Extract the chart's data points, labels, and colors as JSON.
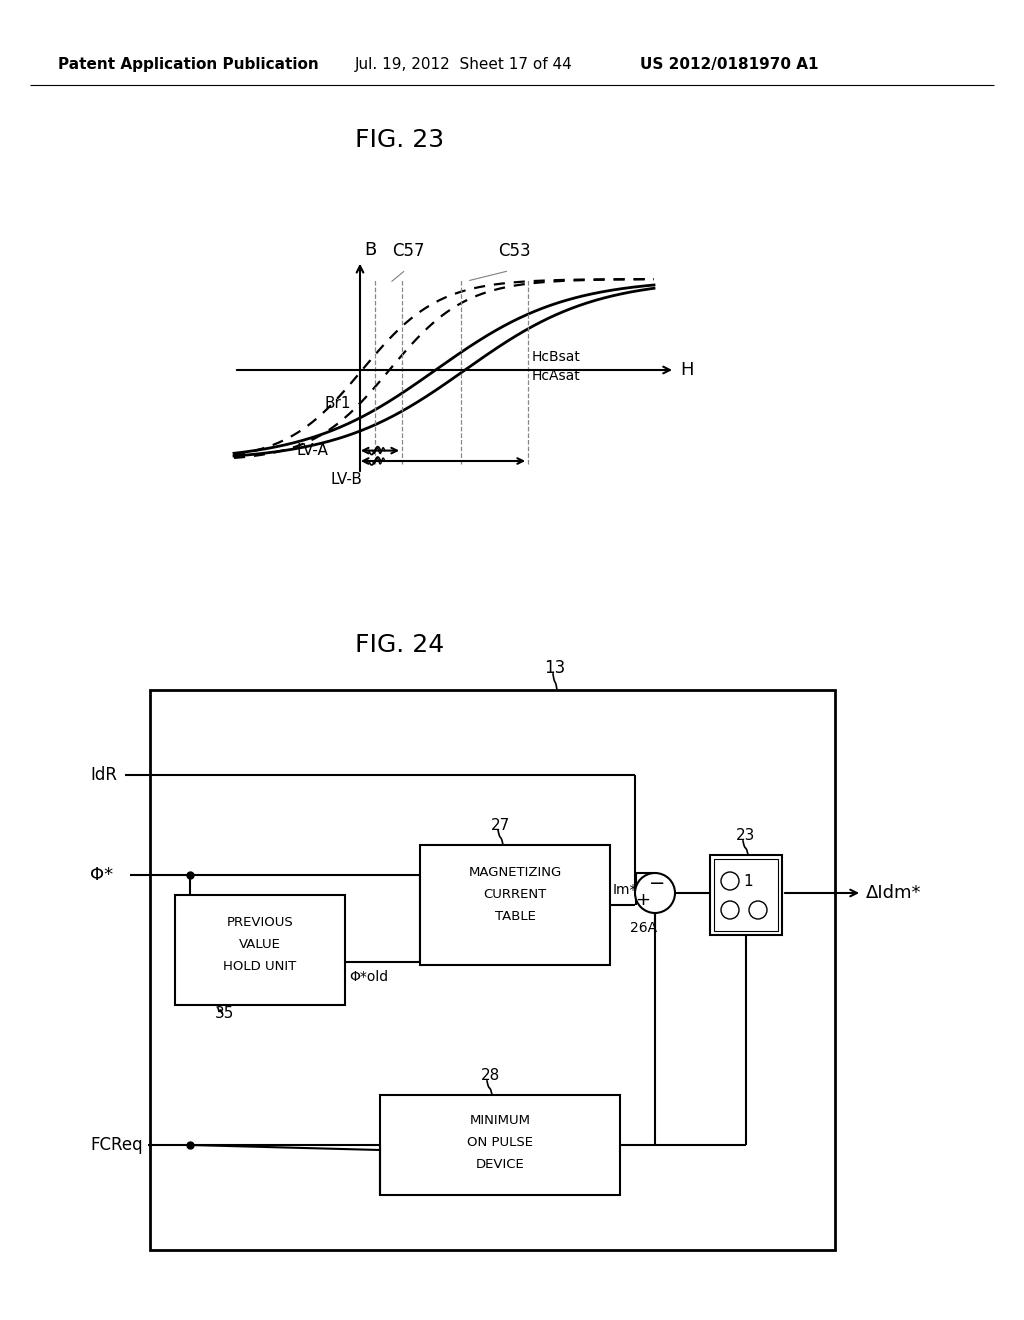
{
  "header_left": "Patent Application Publication",
  "header_mid": "Jul. 19, 2012  Sheet 17 of 44",
  "header_right": "US 2012/0181970 A1",
  "fig23_title": "FIG. 23",
  "fig24_title": "FIG. 24",
  "bg_color": "#ffffff",
  "text_color": "#000000"
}
